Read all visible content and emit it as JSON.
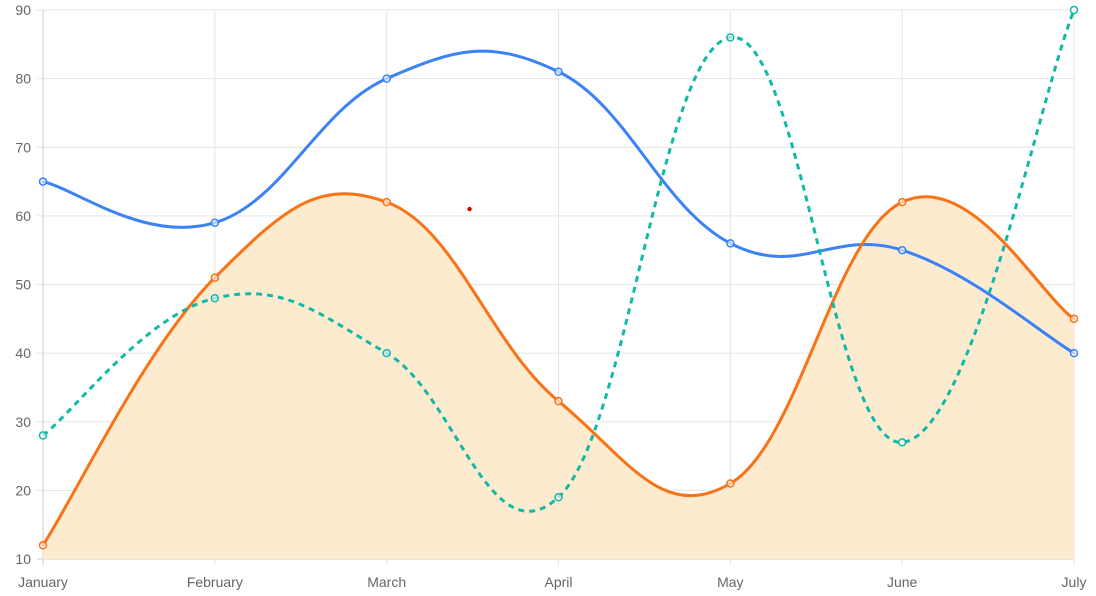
{
  "chart_data": {
    "type": "line",
    "categories": [
      "January",
      "February",
      "March",
      "April",
      "May",
      "June",
      "July"
    ],
    "ylim": [
      10,
      90
    ],
    "y_ticks": [
      10,
      20,
      30,
      40,
      50,
      60,
      70,
      80,
      90
    ],
    "grid": true,
    "legend": "none",
    "series": [
      {
        "values": [
          65,
          59,
          80,
          81,
          56,
          55,
          40
        ],
        "color": "#3b82f6",
        "style": "solid",
        "fill": false
      },
      {
        "values": [
          12,
          51,
          62,
          33,
          21,
          62,
          45
        ],
        "color": "#f97316",
        "style": "solid",
        "fill": true,
        "fill_color": "#fdebd0"
      },
      {
        "values": [
          28,
          48,
          40,
          19,
          86,
          27,
          90
        ],
        "color": "#14b8a6",
        "style": "dashed",
        "fill": false
      }
    ],
    "annotations": [
      {
        "type": "dot",
        "x": "Mar-Apr",
        "y": 61,
        "color": "#e00000"
      }
    ]
  }
}
